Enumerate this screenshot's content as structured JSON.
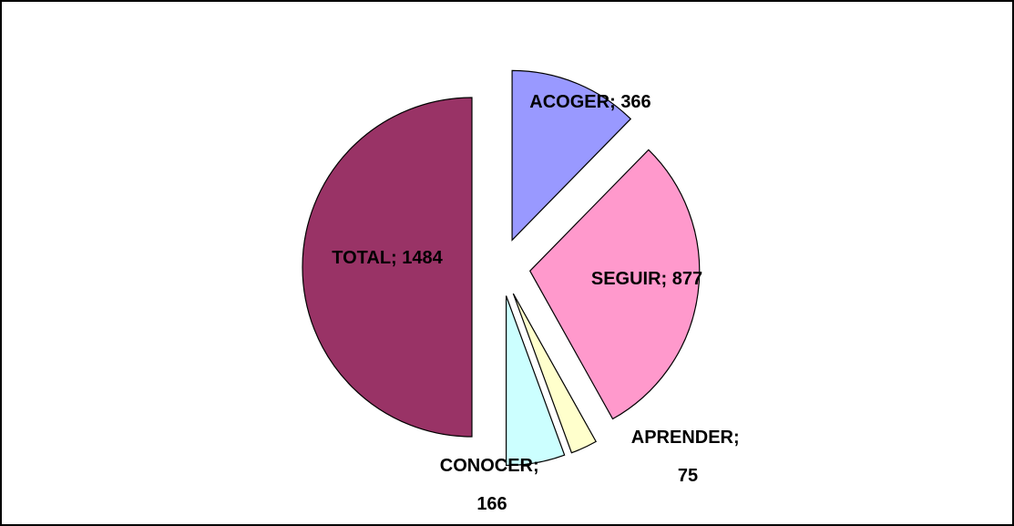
{
  "chart_data": {
    "type": "pie",
    "categories": [
      "ACOGER",
      "SEGUIR",
      "APRENDER",
      "CONOCER",
      "TOTAL"
    ],
    "values": [
      366,
      877,
      75,
      166,
      1484
    ],
    "colors": [
      "#9999ff",
      "#ff99cc",
      "#ffffcc",
      "#ccffff",
      "#993366"
    ],
    "label_separator": "; "
  }
}
